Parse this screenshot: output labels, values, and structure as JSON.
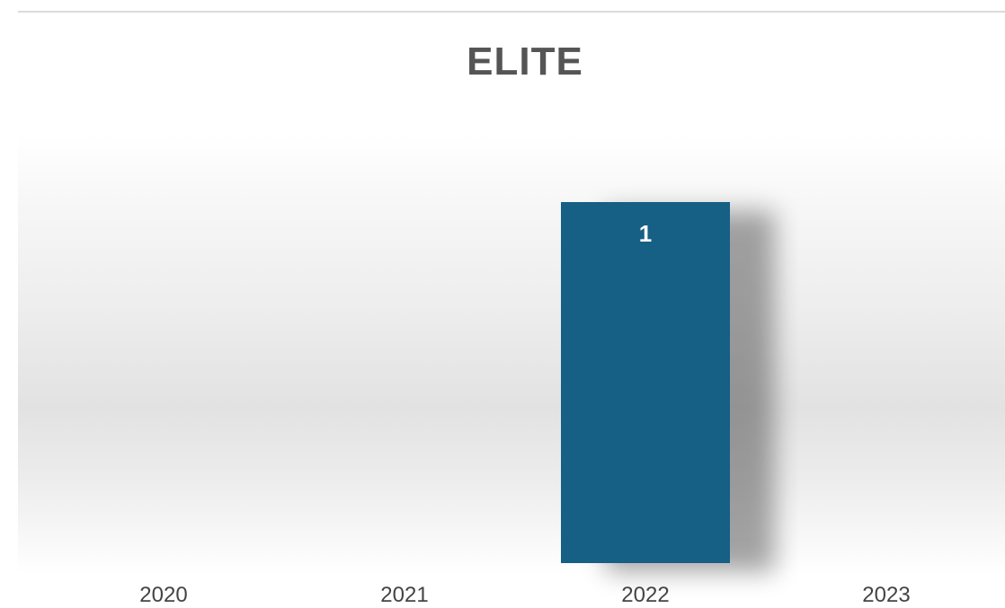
{
  "chart_data": {
    "type": "bar",
    "title": "ELITE",
    "categories": [
      "2020",
      "2021",
      "2022",
      "2023"
    ],
    "values": [
      0,
      0,
      1,
      0
    ],
    "data_labels": [
      "",
      "",
      "1",
      ""
    ],
    "xlabel": "",
    "ylabel": "",
    "ylim": [
      0,
      1
    ],
    "grid": false,
    "legend": "none",
    "bar_color": "#185e85"
  }
}
